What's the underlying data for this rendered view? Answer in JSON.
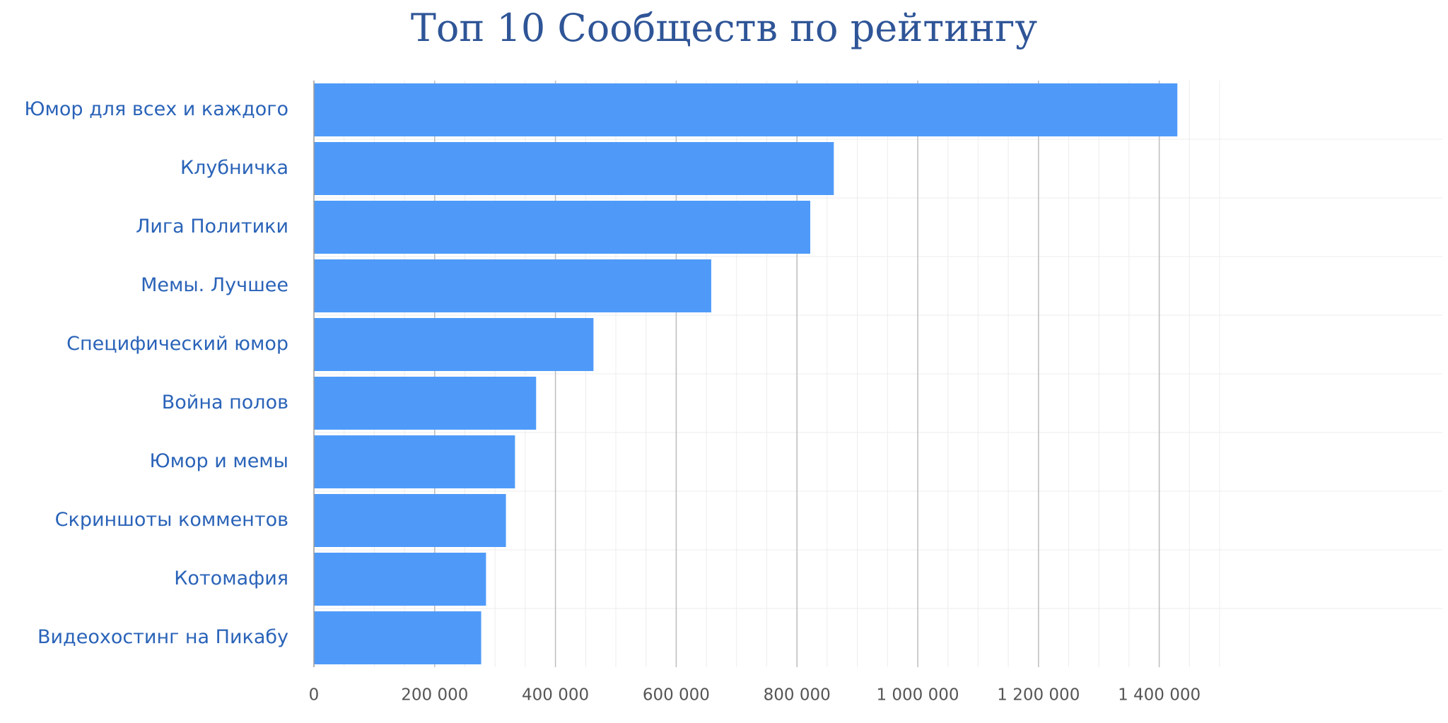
{
  "chart_data": {
    "type": "bar",
    "orientation": "horizontal",
    "title": "Топ 10 Сообществ по рейтингу",
    "xlabel": "",
    "ylabel": "",
    "categories": [
      "Юмор для всех и каждого",
      "Клубничка",
      "Лига Политики",
      "Мемы. Лучшее",
      "Специфический юмор",
      "Война полов",
      "Юмор и мемы",
      "Скриншоты комментов",
      "Котомафия",
      "Видеохостинг на Пикабу"
    ],
    "values": [
      1430000,
      861000,
      822000,
      658000,
      463000,
      368000,
      333000,
      318000,
      285000,
      277000
    ],
    "xlim": [
      0,
      1500000
    ],
    "ticks": [
      0,
      200000,
      400000,
      600000,
      800000,
      1000000,
      1200000,
      1400000
    ],
    "tick_labels": [
      "0",
      "200 000",
      "400 000",
      "600 000",
      "800 000",
      "1 000 000",
      "1 200 000",
      "1 400 000"
    ],
    "grid": true,
    "legend": "none",
    "bar_color": "#4f9af9",
    "category_color": "#2a63b8",
    "title_color": "#2f5597"
  }
}
